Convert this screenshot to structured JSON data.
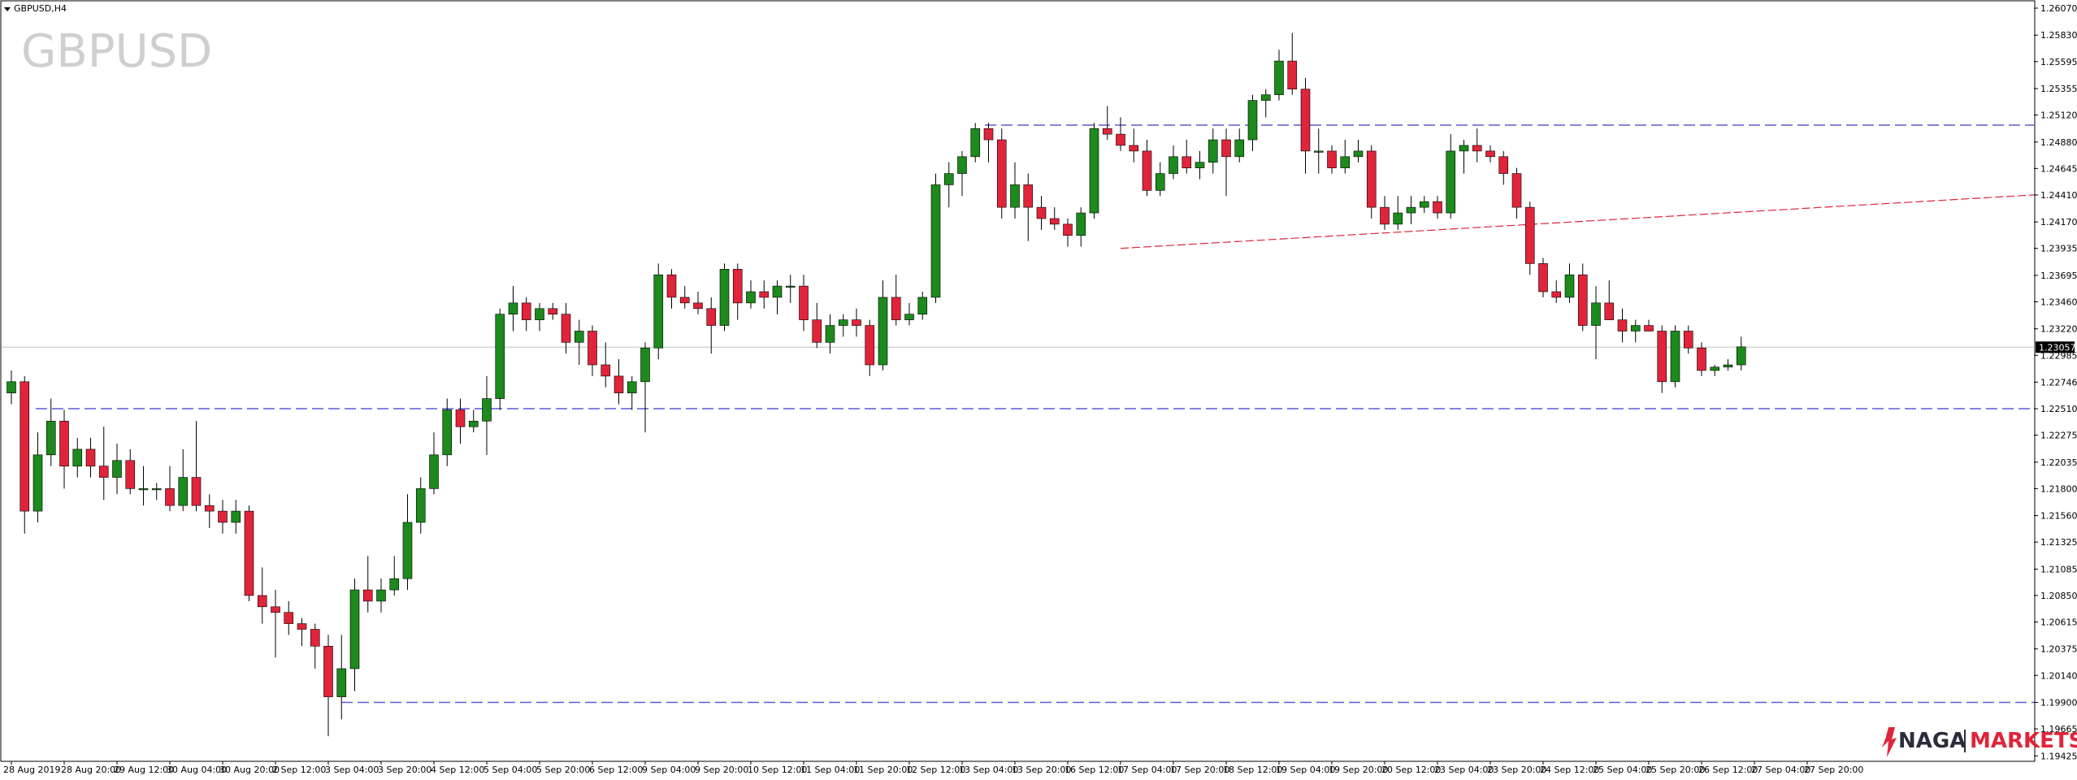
{
  "window": {
    "label": "GBPUSD,H4",
    "menu_icon": "triangle-down-icon"
  },
  "watermark": "GBPUSD",
  "brand": {
    "name_left": "NAGA",
    "name_right": "MARKETS",
    "logo_icon": "naga-flame-icon",
    "color_left": "#2a2d3a",
    "color_right": "#e0243a"
  },
  "colors": {
    "bull": "#1c8a1c",
    "bear": "#e0243a",
    "wick": "#000000",
    "support_line": "#5b5bd6",
    "trend_line": "#e0243a",
    "current_line": "#c0c0c0"
  },
  "chart_data": {
    "type": "candlestick",
    "symbol": "GBPUSD",
    "timeframe": "H4",
    "ylim": [
      1.1942,
      1.2607
    ],
    "y_ticks": [
      "1.26070",
      "1.25830",
      "1.25595",
      "1.25355",
      "1.25120",
      "1.24880",
      "1.24645",
      "1.24410",
      "1.24170",
      "1.23935",
      "1.23695",
      "1.23460",
      "1.23220",
      "1.22985",
      "1.22746",
      "1.22510",
      "1.22275",
      "1.22035",
      "1.21800",
      "1.21560",
      "1.21325",
      "1.21085",
      "1.20850",
      "1.20615",
      "1.20375",
      "1.20140",
      "1.19900",
      "1.19665",
      "1.19425"
    ],
    "x_ticks": [
      "28 Aug 2019",
      "28 Aug 20:00",
      "29 Aug 12:00",
      "30 Aug 04:00",
      "30 Aug 20:00",
      "2 Sep 12:00",
      "3 Sep 04:00",
      "3 Sep 20:00",
      "4 Sep 12:00",
      "5 Sep 04:00",
      "5 Sep 20:00",
      "6 Sep 12:00",
      "9 Sep 04:00",
      "9 Sep 20:00",
      "10 Sep 12:00",
      "11 Sep 04:00",
      "11 Sep 20:00",
      "12 Sep 12:00",
      "13 Sep 04:00",
      "13 Sep 20:00",
      "16 Sep 12:00",
      "17 Sep 04:00",
      "17 Sep 20:00",
      "18 Sep 12:00",
      "19 Sep 04:00",
      "19 Sep 20:00",
      "20 Sep 12:00",
      "23 Sep 04:00",
      "23 Sep 20:00",
      "24 Sep 12:00",
      "25 Sep 04:00",
      "25 Sep 20:00",
      "26 Sep 12:00",
      "27 Sep 04:00",
      "27 Sep 20:00"
    ],
    "current_price": "1.23057",
    "ohlc": [
      [
        1.2265,
        1.2285,
        1.2255,
        1.2275
      ],
      [
        1.2275,
        1.228,
        1.214,
        1.216
      ],
      [
        1.216,
        1.223,
        1.215,
        1.221
      ],
      [
        1.221,
        1.226,
        1.22,
        1.224
      ],
      [
        1.224,
        1.225,
        1.218,
        1.22
      ],
      [
        1.22,
        1.2225,
        1.219,
        1.2215
      ],
      [
        1.2215,
        1.2225,
        1.219,
        1.22
      ],
      [
        1.22,
        1.2235,
        1.217,
        1.219
      ],
      [
        1.219,
        1.222,
        1.2175,
        1.2205
      ],
      [
        1.2205,
        1.2215,
        1.2175,
        1.218
      ],
      [
        1.218,
        1.22,
        1.2165,
        1.218
      ],
      [
        1.218,
        1.2185,
        1.217,
        1.218
      ],
      [
        1.218,
        1.22,
        1.216,
        1.2165
      ],
      [
        1.2165,
        1.2215,
        1.216,
        1.219
      ],
      [
        1.219,
        1.224,
        1.216,
        1.2165
      ],
      [
        1.2165,
        1.2175,
        1.2145,
        1.216
      ],
      [
        1.216,
        1.217,
        1.214,
        1.215
      ],
      [
        1.215,
        1.217,
        1.214,
        1.216
      ],
      [
        1.216,
        1.2165,
        1.208,
        1.2085
      ],
      [
        1.2085,
        1.211,
        1.206,
        1.2075
      ],
      [
        1.2075,
        1.209,
        1.203,
        1.207
      ],
      [
        1.207,
        1.208,
        1.205,
        1.206
      ],
      [
        1.206,
        1.2065,
        1.204,
        1.2055
      ],
      [
        1.2055,
        1.206,
        1.202,
        1.204
      ],
      [
        1.204,
        1.205,
        1.196,
        1.1995
      ],
      [
        1.1995,
        1.205,
        1.1975,
        1.202
      ],
      [
        1.202,
        1.21,
        1.2,
        1.209
      ],
      [
        1.209,
        1.212,
        1.207,
        1.208
      ],
      [
        1.208,
        1.21,
        1.207,
        1.209
      ],
      [
        1.209,
        1.212,
        1.2085,
        1.21
      ],
      [
        1.21,
        1.2175,
        1.209,
        1.215
      ],
      [
        1.215,
        1.219,
        1.214,
        1.218
      ],
      [
        1.218,
        1.223,
        1.2175,
        1.221
      ],
      [
        1.221,
        1.226,
        1.22,
        1.225
      ],
      [
        1.225,
        1.226,
        1.222,
        1.2235
      ],
      [
        1.2235,
        1.225,
        1.223,
        1.224
      ],
      [
        1.224,
        1.228,
        1.221,
        1.226
      ],
      [
        1.226,
        1.234,
        1.225,
        1.2335
      ],
      [
        1.2335,
        1.236,
        1.232,
        1.2345
      ],
      [
        1.2345,
        1.235,
        1.232,
        1.233
      ],
      [
        1.233,
        1.2345,
        1.232,
        1.234
      ],
      [
        1.234,
        1.2345,
        1.233,
        1.2335
      ],
      [
        1.2335,
        1.2345,
        1.23,
        1.231
      ],
      [
        1.231,
        1.233,
        1.229,
        1.232
      ],
      [
        1.232,
        1.2325,
        1.228,
        1.229
      ],
      [
        1.229,
        1.231,
        1.227,
        1.228
      ],
      [
        1.228,
        1.2295,
        1.2255,
        1.2265
      ],
      [
        1.2265,
        1.228,
        1.225,
        1.2275
      ],
      [
        1.2275,
        1.231,
        1.223,
        1.2305
      ],
      [
        1.2305,
        1.238,
        1.2295,
        1.237
      ],
      [
        1.237,
        1.2375,
        1.234,
        1.235
      ],
      [
        1.235,
        1.236,
        1.234,
        1.2345
      ],
      [
        1.2345,
        1.2355,
        1.2335,
        1.234
      ],
      [
        1.234,
        1.235,
        1.23,
        1.2325
      ],
      [
        1.2325,
        1.238,
        1.232,
        1.2375
      ],
      [
        1.2375,
        1.238,
        1.233,
        1.2345
      ],
      [
        1.2345,
        1.2365,
        1.234,
        1.2355
      ],
      [
        1.2355,
        1.2365,
        1.234,
        1.235
      ],
      [
        1.235,
        1.2365,
        1.2335,
        1.236
      ],
      [
        1.236,
        1.237,
        1.2345,
        1.236
      ],
      [
        1.236,
        1.237,
        1.232,
        1.233
      ],
      [
        1.233,
        1.2345,
        1.2305,
        1.231
      ],
      [
        1.231,
        1.2335,
        1.23,
        1.2325
      ],
      [
        1.2325,
        1.2335,
        1.2315,
        1.233
      ],
      [
        1.233,
        1.234,
        1.2315,
        1.2325
      ],
      [
        1.2325,
        1.233,
        1.228,
        1.229
      ],
      [
        1.229,
        1.2365,
        1.2285,
        1.235
      ],
      [
        1.235,
        1.237,
        1.2325,
        1.233
      ],
      [
        1.233,
        1.2345,
        1.2325,
        1.2335
      ],
      [
        1.2335,
        1.2355,
        1.233,
        1.235
      ],
      [
        1.235,
        1.246,
        1.2345,
        1.245
      ],
      [
        1.245,
        1.247,
        1.243,
        1.246
      ],
      [
        1.246,
        1.248,
        1.244,
        1.2475
      ],
      [
        1.2475,
        1.2505,
        1.247,
        1.25
      ],
      [
        1.25,
        1.2505,
        1.247,
        1.249
      ],
      [
        1.249,
        1.25,
        1.242,
        1.243
      ],
      [
        1.243,
        1.247,
        1.242,
        1.245
      ],
      [
        1.245,
        1.246,
        1.24,
        1.243
      ],
      [
        1.243,
        1.244,
        1.241,
        1.242
      ],
      [
        1.242,
        1.243,
        1.241,
        1.2415
      ],
      [
        1.2415,
        1.242,
        1.2395,
        1.2405
      ],
      [
        1.2405,
        1.243,
        1.2395,
        1.2425
      ],
      [
        1.2425,
        1.2505,
        1.242,
        1.25
      ],
      [
        1.25,
        1.252,
        1.249,
        1.2495
      ],
      [
        1.2495,
        1.251,
        1.248,
        1.2485
      ],
      [
        1.2485,
        1.25,
        1.247,
        1.248
      ],
      [
        1.248,
        1.249,
        1.244,
        1.2445
      ],
      [
        1.2445,
        1.247,
        1.244,
        1.246
      ],
      [
        1.246,
        1.2485,
        1.2455,
        1.2475
      ],
      [
        1.2475,
        1.249,
        1.246,
        1.2465
      ],
      [
        1.2465,
        1.248,
        1.2455,
        1.247
      ],
      [
        1.247,
        1.25,
        1.246,
        1.249
      ],
      [
        1.249,
        1.25,
        1.244,
        1.2475
      ],
      [
        1.2475,
        1.25,
        1.247,
        1.249
      ],
      [
        1.249,
        1.253,
        1.248,
        1.2525
      ],
      [
        1.2525,
        1.2535,
        1.251,
        1.253
      ],
      [
        1.253,
        1.257,
        1.2525,
        1.256
      ],
      [
        1.256,
        1.2585,
        1.253,
        1.2535
      ],
      [
        1.2535,
        1.2545,
        1.246,
        1.248
      ],
      [
        1.248,
        1.25,
        1.246,
        1.248
      ],
      [
        1.248,
        1.2485,
        1.246,
        1.2465
      ],
      [
        1.2465,
        1.249,
        1.246,
        1.2475
      ],
      [
        1.2475,
        1.249,
        1.247,
        1.248
      ],
      [
        1.248,
        1.2485,
        1.242,
        1.243
      ],
      [
        1.243,
        1.244,
        1.241,
        1.2415
      ],
      [
        1.2415,
        1.244,
        1.241,
        1.2425
      ],
      [
        1.2425,
        1.244,
        1.2415,
        1.243
      ],
      [
        1.243,
        1.244,
        1.2425,
        1.2435
      ],
      [
        1.2435,
        1.244,
        1.242,
        1.2425
      ],
      [
        1.2425,
        1.2495,
        1.242,
        1.248
      ],
      [
        1.248,
        1.249,
        1.246,
        1.2485
      ],
      [
        1.2485,
        1.25,
        1.247,
        1.248
      ],
      [
        1.248,
        1.2485,
        1.247,
        1.2475
      ],
      [
        1.2475,
        1.248,
        1.245,
        1.246
      ],
      [
        1.246,
        1.2465,
        1.242,
        1.243
      ],
      [
        1.243,
        1.2435,
        1.237,
        1.238
      ],
      [
        1.238,
        1.2385,
        1.235,
        1.2355
      ],
      [
        1.2355,
        1.2365,
        1.2345,
        1.235
      ],
      [
        1.235,
        1.238,
        1.2345,
        1.237
      ],
      [
        1.237,
        1.238,
        1.232,
        1.2325
      ],
      [
        1.2325,
        1.236,
        1.2295,
        1.2345
      ],
      [
        1.2345,
        1.2365,
        1.233,
        1.233
      ],
      [
        1.233,
        1.234,
        1.231,
        1.232
      ],
      [
        1.232,
        1.233,
        1.231,
        1.2325
      ],
      [
        1.2325,
        1.233,
        1.232,
        1.232
      ],
      [
        1.232,
        1.2325,
        1.2265,
        1.2275
      ],
      [
        1.2275,
        1.2325,
        1.227,
        1.232
      ],
      [
        1.232,
        1.2325,
        1.23,
        1.2305
      ],
      [
        1.2305,
        1.231,
        1.228,
        1.2285
      ],
      [
        1.2285,
        1.229,
        1.228,
        1.2288
      ],
      [
        1.2288,
        1.2295,
        1.2285,
        1.229
      ],
      [
        1.229,
        1.2315,
        1.2285,
        1.2306
      ]
    ],
    "hlines": [
      1.2503,
      1.2251,
      1.199
    ],
    "trendline": {
      "from": [
        84,
        1.23935
      ],
      "to": [
        158,
        1.2441
      ]
    }
  }
}
